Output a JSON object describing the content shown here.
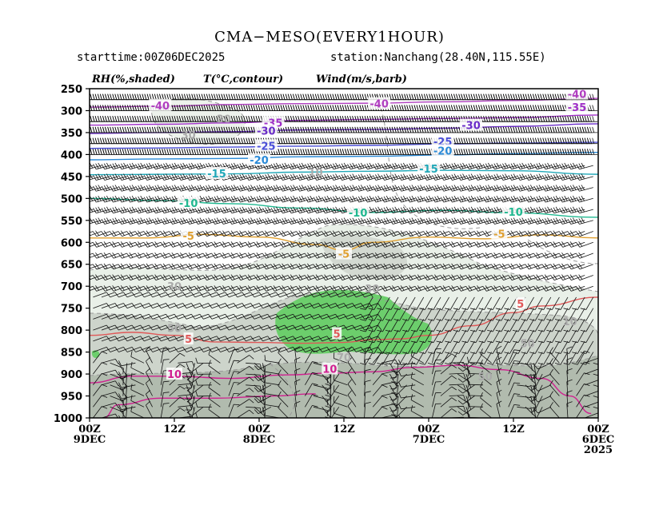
{
  "header": {
    "title": "CMA−MESO(EVERY1HOUR)",
    "starttime": "starttime:00Z06DEC2025",
    "station": "station:Nanchang(28.40N,115.55E)"
  },
  "legend": {
    "rh": "RH(%,shaded)",
    "temp": "T(°C,contour)",
    "wind": "Wind(m/s,barb)"
  },
  "chart_data": {
    "type": "heatmap",
    "title": "CMA−MESO(EVERY1HOUR)",
    "xlabel": "",
    "ylabel": "",
    "ylim": [
      1000,
      250
    ],
    "y_levels": [
      250,
      300,
      350,
      400,
      450,
      500,
      550,
      600,
      650,
      700,
      750,
      800,
      850,
      900,
      950,
      1000
    ],
    "x_ticks": [
      {
        "hour": 0,
        "line1": "00Z",
        "line2": "9DEC",
        "line3": ""
      },
      {
        "hour": 12,
        "line1": "12Z",
        "line2": "",
        "line3": ""
      },
      {
        "hour": 24,
        "line1": "00Z",
        "line2": "8DEC",
        "line3": ""
      },
      {
        "hour": 36,
        "line1": "12Z",
        "line2": "",
        "line3": ""
      },
      {
        "hour": 48,
        "line1": "00Z",
        "line2": "7DEC",
        "line3": ""
      },
      {
        "hour": 60,
        "line1": "12Z",
        "line2": "",
        "line3": ""
      },
      {
        "hour": 72,
        "line1": "00Z",
        "line2": "6DEC",
        "line3": "2025"
      }
    ],
    "temperature_contours": [
      {
        "value": -40,
        "label": "-40",
        "color": "#b03ec0",
        "points": [
          [
            0,
            292
          ],
          [
            10,
            290
          ],
          [
            20,
            286
          ],
          [
            30,
            284
          ],
          [
            40,
            283
          ],
          [
            50,
            280
          ],
          [
            60,
            277
          ],
          [
            72,
            272
          ]
        ],
        "labels": [
          {
            "hour": 10,
            "level": 288,
            "text": "-40"
          },
          {
            "hour": 41,
            "level": 284,
            "text": "-40"
          },
          {
            "hour": 69,
            "level": 262,
            "text": "-40"
          }
        ]
      },
      {
        "value": -35,
        "label": "-35",
        "color": "#a030c8",
        "points": [
          [
            0,
            333
          ],
          [
            10,
            331
          ],
          [
            20,
            328
          ],
          [
            30,
            322
          ],
          [
            40,
            320
          ],
          [
            50,
            318
          ],
          [
            60,
            316
          ],
          [
            72,
            310
          ]
        ],
        "labels": [
          {
            "hour": 26,
            "level": 327,
            "text": "-35"
          },
          {
            "hour": 69,
            "level": 292,
            "text": "-35"
          }
        ]
      },
      {
        "value": -30,
        "label": "-30",
        "color": "#6a2cc8",
        "points": [
          [
            0,
            352
          ],
          [
            10,
            350
          ],
          [
            20,
            348
          ],
          [
            30,
            344
          ],
          [
            40,
            343
          ],
          [
            50,
            340
          ],
          [
            60,
            336
          ],
          [
            72,
            330
          ]
        ],
        "labels": [
          {
            "hour": 25,
            "level": 346,
            "text": "-30"
          },
          {
            "hour": 54,
            "level": 333,
            "text": "-30"
          }
        ]
      },
      {
        "value": -25,
        "label": "-25",
        "color": "#4a4ed8",
        "points": [
          [
            0,
            386
          ],
          [
            10,
            385
          ],
          [
            20,
            383
          ],
          [
            30,
            381
          ],
          [
            40,
            379
          ],
          [
            50,
            376
          ],
          [
            60,
            374
          ],
          [
            72,
            372
          ]
        ],
        "labels": [
          {
            "hour": 25,
            "level": 380,
            "text": "-25"
          },
          {
            "hour": 50,
            "level": 370,
            "text": "-25"
          }
        ]
      },
      {
        "value": -20,
        "label": "-20",
        "color": "#2a8ad8",
        "points": [
          [
            0,
            412
          ],
          [
            10,
            410
          ],
          [
            20,
            409
          ],
          [
            30,
            405
          ],
          [
            40,
            404
          ],
          [
            50,
            401
          ],
          [
            60,
            398
          ],
          [
            72,
            395
          ]
        ],
        "labels": [
          {
            "hour": 24,
            "level": 412,
            "text": "-20"
          },
          {
            "hour": 50,
            "level": 391,
            "text": "-20"
          }
        ]
      },
      {
        "value": -15,
        "label": "-15",
        "color": "#20a8b8",
        "points": [
          [
            0,
            446
          ],
          [
            10,
            445
          ],
          [
            20,
            444
          ],
          [
            30,
            440
          ],
          [
            40,
            438
          ],
          [
            50,
            436
          ],
          [
            60,
            437
          ],
          [
            72,
            445
          ]
        ],
        "labels": [
          {
            "hour": 18,
            "level": 443,
            "text": "-15"
          },
          {
            "hour": 48,
            "level": 432,
            "text": "-15"
          }
        ]
      },
      {
        "value": -10,
        "label": "-10",
        "color": "#20b890",
        "points": [
          [
            0,
            500
          ],
          [
            10,
            505
          ],
          [
            20,
            512
          ],
          [
            30,
            522
          ],
          [
            40,
            532
          ],
          [
            50,
            527
          ],
          [
            60,
            533
          ],
          [
            72,
            543
          ]
        ],
        "labels": [
          {
            "hour": 14,
            "level": 510,
            "text": "-10"
          },
          {
            "hour": 38,
            "level": 532,
            "text": "-10"
          },
          {
            "hour": 60,
            "level": 530,
            "text": "-10"
          }
        ]
      },
      {
        "value": -5,
        "label": "-5",
        "color": "#e0a030",
        "points": [
          [
            0,
            590
          ],
          [
            8,
            590
          ],
          [
            16,
            582
          ],
          [
            24,
            588
          ],
          [
            32,
            605
          ],
          [
            36,
            618
          ],
          [
            40,
            600
          ],
          [
            48,
            588
          ],
          [
            56,
            592
          ],
          [
            64,
            583
          ],
          [
            72,
            590
          ]
        ],
        "labels": [
          {
            "hour": 14,
            "level": 585,
            "text": "-5"
          },
          {
            "hour": 36,
            "level": 626,
            "text": "-5"
          },
          {
            "hour": 58,
            "level": 580,
            "text": "-5"
          }
        ]
      },
      {
        "value": 5,
        "label": "5",
        "color": "#e05858",
        "points": [
          [
            0,
            812
          ],
          [
            6,
            805
          ],
          [
            12,
            812
          ],
          [
            18,
            827
          ],
          [
            24,
            828
          ],
          [
            30,
            830
          ],
          [
            36,
            828
          ],
          [
            40,
            822
          ],
          [
            44,
            820
          ],
          [
            48,
            812
          ],
          [
            54,
            790
          ],
          [
            60,
            760
          ],
          [
            64,
            745
          ],
          [
            72,
            725
          ]
        ],
        "labels": [
          {
            "hour": 14,
            "level": 820,
            "text": "5"
          },
          {
            "hour": 35,
            "level": 808,
            "text": "5"
          },
          {
            "hour": 61,
            "level": 740,
            "text": "5"
          }
        ]
      },
      {
        "value": 10,
        "label": "10",
        "color": "#d02090",
        "points": [
          [
            0,
            920
          ],
          [
            6,
            905
          ],
          [
            12,
            905
          ],
          [
            20,
            910
          ],
          [
            28,
            902
          ],
          [
            34,
            898
          ],
          [
            40,
            895
          ],
          [
            46,
            885
          ],
          [
            52,
            880
          ],
          [
            58,
            890
          ],
          [
            64,
            910
          ],
          [
            68,
            950
          ],
          [
            71,
            990
          ]
        ],
        "labels": [
          {
            "hour": 12,
            "level": 900,
            "text": "10"
          },
          {
            "hour": 34,
            "level": 888,
            "text": "10"
          }
        ]
      },
      {
        "value": 15,
        "label": "",
        "color": "#d02090",
        "points": [
          [
            2,
            1000
          ],
          [
            4,
            970
          ],
          [
            10,
            955
          ],
          [
            18,
            955
          ],
          [
            26,
            950
          ],
          [
            32,
            945
          ]
        ],
        "labels": []
      }
    ],
    "rh_labels": [
      {
        "hour": 19,
        "level": 318,
        "text": "30",
        "color": "#aaaaaa"
      },
      {
        "hour": 14,
        "level": 355,
        "text": "30",
        "color": "#aaaaaa"
      },
      {
        "hour": 32,
        "level": 440,
        "text": "10",
        "color": "#aaaaaa"
      },
      {
        "hour": 12,
        "level": 700,
        "text": "30",
        "color": "#aaaaaa"
      },
      {
        "hour": 12,
        "level": 795,
        "text": "50",
        "color": "#aaaaaa"
      },
      {
        "hour": 40,
        "level": 705,
        "text": "30",
        "color": "#aaaaaa"
      },
      {
        "hour": 68,
        "level": 780,
        "text": "10",
        "color": "#aaaaaa"
      },
      {
        "hour": 62,
        "level": 830,
        "text": "50",
        "color": "#aaaaaa"
      },
      {
        "hour": 36,
        "level": 862,
        "text": "70",
        "color": "#aaaaaa"
      },
      {
        "hour": 56,
        "level": 905,
        "text": "50",
        "color": "#aaaaaa"
      }
    ],
    "rh_colors": {
      "rh_30_50": "#e7eee6",
      "rh_50_70": "#c8cfc6",
      "rh_70_90": "#a9b3a6",
      "rh_gt_90": "#6cce6c"
    },
    "wind_barbs": {
      "units": "m/s",
      "interval_hours": 1
    }
  }
}
